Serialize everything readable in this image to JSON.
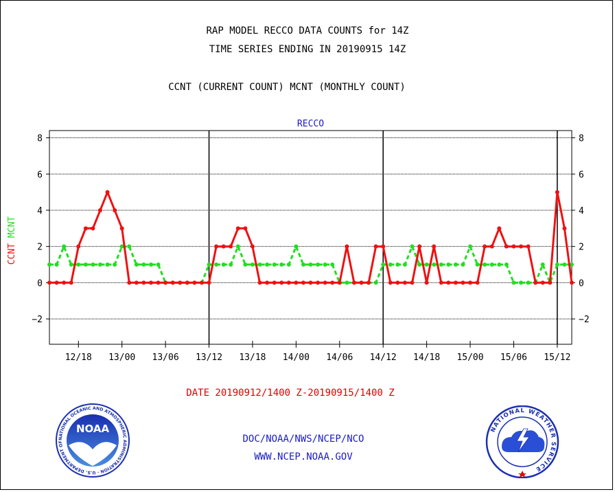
{
  "header": {
    "title_line1": "RAP MODEL RECCO DATA COUNTS for 14Z",
    "title_line2": "TIME SERIES ENDING IN 20190915 14Z",
    "subtitle": "CCNT (CURRENT COUNT) MCNT (MONTHLY COUNT)"
  },
  "footer": {
    "date_range": "DATE 20190912/1400 Z-20190915/1400 Z",
    "org_line": "DOC/NOAA/NWS/NCEP/NCO",
    "url_line": "WWW.NCEP.NOAA.GOV"
  },
  "logos": {
    "left": "NOAA",
    "left_ring": "NATIONAL OCEANIC AND ATMOSPHERIC ADMINISTRATION · U.S. DEPARTMENT OF COMMERCE ·",
    "right_ring": "NATIONAL WEATHER SERVICE"
  },
  "colors": {
    "ccnt": "#ee1111",
    "mcnt": "#22dd22",
    "title": "#1a1ac8"
  },
  "chart_data": {
    "type": "line",
    "title": "RECCO",
    "ylabel_ccnt": "CCNT",
    "ylabel_mcnt": "MCNT",
    "ylim": [
      -3.4,
      8.4
    ],
    "yticks": [
      -2,
      0,
      2,
      4,
      6,
      8
    ],
    "xlim": [
      0,
      72
    ],
    "xtick_positions": [
      4,
      10,
      16,
      22,
      28,
      34,
      40,
      46,
      52,
      58,
      64,
      70
    ],
    "xtick_labels": [
      "12/18",
      "13/00",
      "13/06",
      "13/12",
      "13/18",
      "14/00",
      "14/06",
      "14/12",
      "14/18",
      "15/00",
      "15/06",
      "15/12"
    ],
    "day_boundaries": [
      22,
      46,
      70
    ],
    "grid": true,
    "series": [
      {
        "name": "CCNT",
        "x": [
          0,
          1,
          2,
          3,
          4,
          5,
          6,
          7,
          8,
          9,
          10,
          11,
          12,
          13,
          14,
          15,
          16,
          17,
          18,
          19,
          20,
          21,
          22,
          23,
          24,
          25,
          26,
          27,
          28,
          29,
          30,
          31,
          32,
          33,
          34,
          35,
          36,
          37,
          38,
          39,
          40,
          41,
          42,
          43,
          44,
          45,
          46,
          47,
          48,
          49,
          50,
          51,
          52,
          53,
          54,
          55,
          56,
          57,
          58,
          59,
          60,
          61,
          62,
          63,
          64,
          65,
          66,
          67,
          68,
          69,
          70,
          71,
          72
        ],
        "values": [
          0,
          0,
          0,
          0,
          2,
          3,
          3,
          4,
          5,
          4,
          3,
          0,
          0,
          0,
          0,
          0,
          0,
          0,
          0,
          0,
          0,
          0,
          0,
          2,
          2,
          2,
          3,
          3,
          2,
          0,
          0,
          0,
          0,
          0,
          0,
          0,
          0,
          0,
          0,
          0,
          0,
          2,
          0,
          0,
          0,
          2,
          2,
          0,
          0,
          0,
          0,
          2,
          0,
          2,
          0,
          0,
          0,
          0,
          0,
          0,
          2,
          2,
          3,
          2,
          2,
          2,
          2,
          0,
          0,
          0,
          5,
          3,
          0
        ]
      },
      {
        "name": "MCNT",
        "x": [
          0,
          1,
          2,
          3,
          4,
          5,
          6,
          7,
          8,
          9,
          10,
          11,
          12,
          13,
          14,
          15,
          16,
          17,
          18,
          19,
          20,
          21,
          22,
          23,
          24,
          25,
          26,
          27,
          28,
          29,
          30,
          31,
          32,
          33,
          34,
          35,
          36,
          37,
          38,
          39,
          40,
          41,
          42,
          43,
          44,
          45,
          46,
          47,
          48,
          49,
          50,
          51,
          52,
          53,
          54,
          55,
          56,
          57,
          58,
          59,
          60,
          61,
          62,
          63,
          64,
          65,
          66,
          67,
          68,
          69,
          70,
          71,
          72
        ],
        "values": [
          1,
          1,
          2,
          1,
          1,
          1,
          1,
          1,
          1,
          1,
          2,
          2,
          1,
          1,
          1,
          1,
          0,
          0,
          0,
          0,
          0,
          0,
          1,
          1,
          1,
          1,
          2,
          1,
          1,
          1,
          1,
          1,
          1,
          1,
          2,
          1,
          1,
          1,
          1,
          1,
          0,
          0,
          0,
          0,
          0,
          0,
          1,
          1,
          1,
          1,
          2,
          1,
          1,
          1,
          1,
          1,
          1,
          1,
          2,
          1,
          1,
          1,
          1,
          1,
          0,
          0,
          0,
          0,
          1,
          0,
          1,
          1,
          1
        ]
      }
    ]
  }
}
